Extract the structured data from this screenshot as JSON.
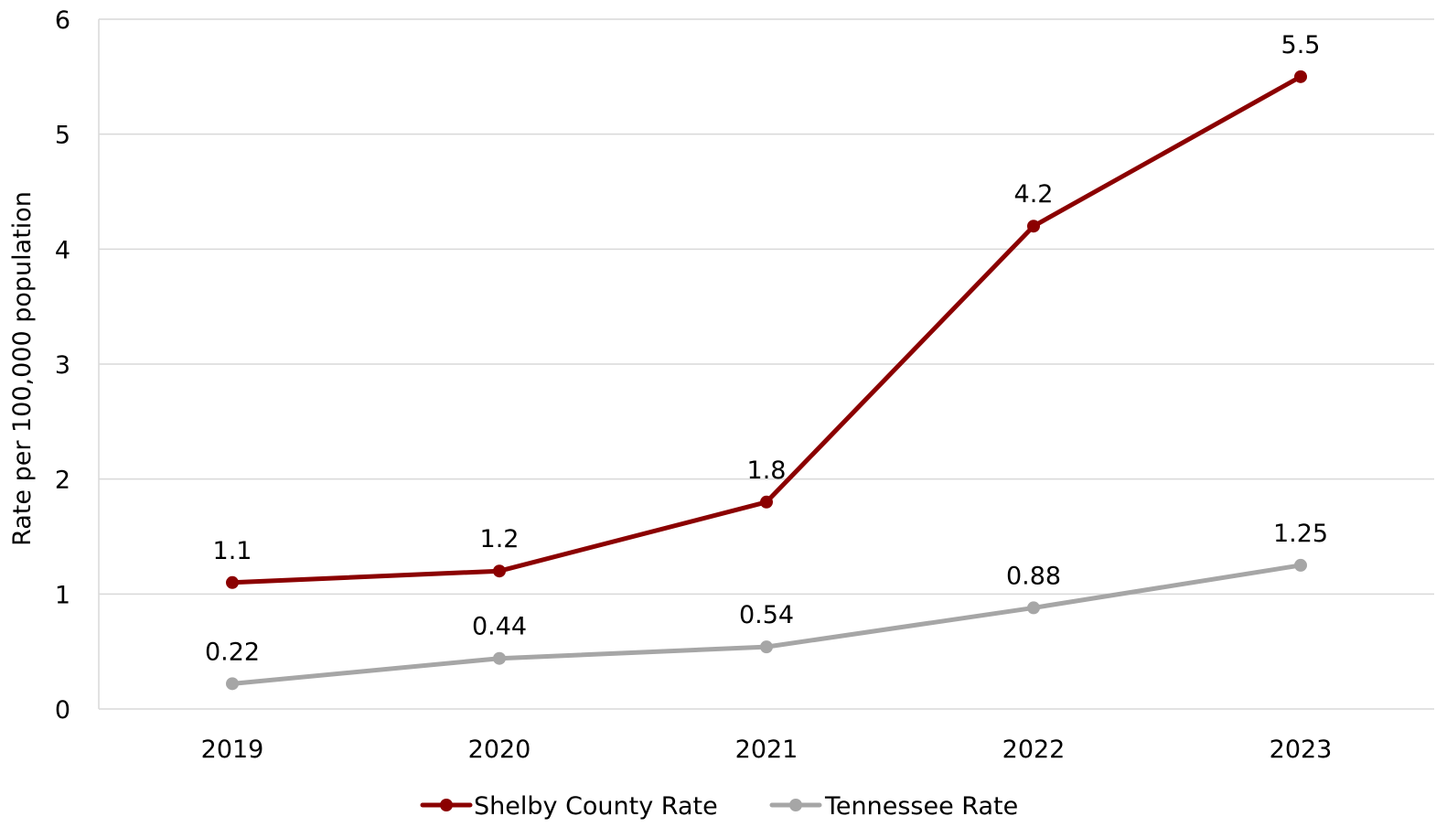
{
  "chart_data": {
    "type": "line",
    "title": "",
    "xlabel": "",
    "ylabel": "Rate per 100,000 population",
    "categories": [
      "2019",
      "2020",
      "2021",
      "2022",
      "2023"
    ],
    "ylim": [
      0,
      6
    ],
    "yticks": [
      0,
      1,
      2,
      3,
      4,
      5,
      6
    ],
    "grid": true,
    "legend_position": "bottom",
    "series": [
      {
        "name": "Shelby County Rate",
        "color": "#8b0000",
        "values": [
          1.1,
          1.2,
          1.8,
          4.2,
          5.5
        ],
        "labels": [
          "1.1",
          "1.2",
          "1.8",
          "4.2",
          "5.5"
        ]
      },
      {
        "name": "Tennessee Rate",
        "color": "#a6a6a6",
        "values": [
          0.22,
          0.44,
          0.54,
          0.88,
          1.25
        ],
        "labels": [
          "0.22",
          "0.44",
          "0.54",
          "0.88",
          "1.25"
        ]
      }
    ]
  }
}
